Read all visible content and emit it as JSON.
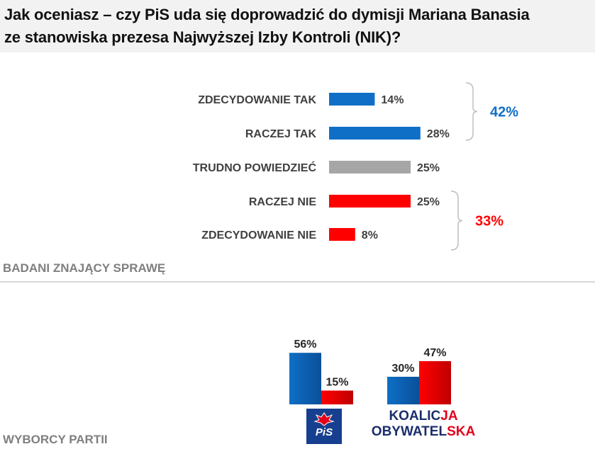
{
  "title": {
    "line1": "Jak oceniasz – czy PiS uda się doprowadzić do dymisji Mariana Banasia",
    "line2": "ze stanowiska prezesa Najwyższej Izby Kontroli (NIK)?"
  },
  "sections": {
    "top_label": "BADANI ZNAJĄCY SPRAWĘ",
    "bottom_label": "WYBORCY PARTII"
  },
  "colors": {
    "blue": "#0f6fc6",
    "gray": "#a6a6a6",
    "red": "#ff0000",
    "brace": "#bfbfbf"
  },
  "chart_data": [
    {
      "type": "bar",
      "orientation": "horizontal",
      "categories": [
        "ZDECYDOWANIE TAK",
        "RACZEJ TAK",
        "TRUDNO POWIEDZIEĆ",
        "RACZEJ NIE",
        "ZDECYDOWANIE NIE"
      ],
      "values": [
        14,
        28,
        25,
        25,
        8
      ],
      "value_labels": [
        "14%",
        "28%",
        "25%",
        "25%",
        "8%"
      ],
      "bar_colors": [
        "#0f6fc6",
        "#0f6fc6",
        "#a6a6a6",
        "#ff0000",
        "#ff0000"
      ],
      "groups": [
        {
          "label": "42%",
          "color": "#0f6fc6",
          "members": [
            "ZDECYDOWANIE TAK",
            "RACZEJ TAK"
          ]
        },
        {
          "label": "33%",
          "color": "#ff0000",
          "members": [
            "RACZEJ NIE",
            "ZDECYDOWANIE NIE"
          ]
        }
      ],
      "xlim": [
        0,
        100
      ]
    },
    {
      "type": "bar",
      "categories": [
        "PiS",
        "KOALICJA OBYWATELSKA"
      ],
      "series": [
        {
          "color": "#0f6fc6",
          "values": [
            56,
            30
          ],
          "labels": [
            "56%",
            "30%"
          ]
        },
        {
          "color": "#ff0000",
          "values": [
            15,
            47
          ],
          "labels": [
            "15%",
            "47%"
          ]
        }
      ],
      "ylim": [
        0,
        100
      ]
    }
  ],
  "logos": {
    "pis": "PiS",
    "ko_line1_dark": "KOALIC",
    "ko_line1_red": "JA",
    "ko_line2_dark": "OBYWATEL",
    "ko_line2_red": "SKA"
  }
}
